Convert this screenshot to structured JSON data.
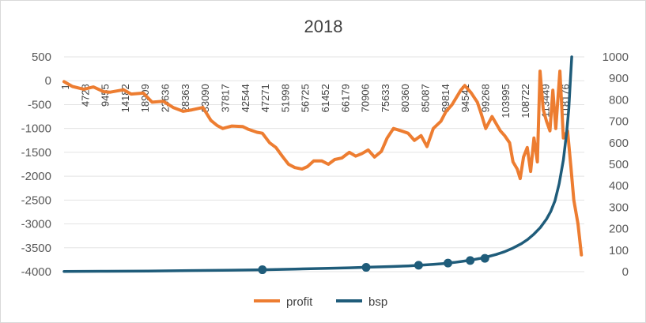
{
  "chart_data": {
    "type": "line",
    "title": "2018",
    "xlabel": "",
    "ylabel": "",
    "y_left": {
      "min": -4000,
      "max": 500,
      "ticks": [
        500,
        0,
        -500,
        -1000,
        -1500,
        -2000,
        -2500,
        -3000,
        -3500,
        -4000
      ]
    },
    "y_right": {
      "min": 0,
      "max": 1000,
      "ticks": [
        1000,
        900,
        800,
        700,
        600,
        500,
        400,
        300,
        200,
        100,
        0
      ]
    },
    "x_range": [
      1,
      124000
    ],
    "categories": [
      "1",
      "4728",
      "9455",
      "14182",
      "18909",
      "23636",
      "28363",
      "33090",
      "37817",
      "42544",
      "47271",
      "51998",
      "56725",
      "61452",
      "66179",
      "70906",
      "75633",
      "80360",
      "85087",
      "89814",
      "94541",
      "99268",
      "103995",
      "108722",
      "113449",
      "118176"
    ],
    "grid": true,
    "legend_position": "bottom",
    "colors": {
      "profit": "#ED7D31",
      "bsp": "#1F5C7A"
    },
    "series": [
      {
        "name": "profit",
        "axis": "left",
        "x": [
          1,
          2000,
          4728,
          7000,
          9455,
          11000,
          14182,
          16000,
          18909,
          21000,
          23636,
          26000,
          28363,
          30500,
          33090,
          35000,
          36500,
          37817,
          40000,
          42544,
          44000,
          46000,
          47271,
          49000,
          50500,
          51998,
          53500,
          55000,
          56725,
          58000,
          59500,
          61452,
          63000,
          64500,
          66179,
          68000,
          69500,
          70906,
          72500,
          74000,
          75633,
          77000,
          78500,
          80360,
          82000,
          83500,
          85087,
          86500,
          88000,
          89814,
          91000,
          92500,
          94541,
          95500,
          97000,
          98500,
          99268,
          100500,
          102000,
          103995,
          105000,
          106200,
          107000,
          108000,
          108722,
          109500,
          110400,
          111200,
          112000,
          112800,
          113449,
          114200,
          115000,
          115800,
          116500,
          117200,
          118176,
          119000,
          120000,
          120800,
          121500,
          122500,
          123300
        ],
        "y": [
          -20,
          -120,
          -180,
          -130,
          -230,
          -240,
          -190,
          -280,
          -260,
          -450,
          -430,
          -560,
          -640,
          -610,
          -560,
          -830,
          -940,
          -1000,
          -950,
          -960,
          -1020,
          -1080,
          -1100,
          -1300,
          -1400,
          -1580,
          -1750,
          -1820,
          -1850,
          -1800,
          -1680,
          -1680,
          -1750,
          -1650,
          -1620,
          -1500,
          -1580,
          -1530,
          -1450,
          -1600,
          -1480,
          -1200,
          -1000,
          -1050,
          -1100,
          -1250,
          -1150,
          -1380,
          -1000,
          -850,
          -650,
          -500,
          -200,
          -100,
          -250,
          -450,
          -650,
          -1000,
          -750,
          -1050,
          -1150,
          -1300,
          -1700,
          -1850,
          -2050,
          -1600,
          -1400,
          -1900,
          -1200,
          -1700,
          200,
          -600,
          -850,
          -1050,
          -200,
          -1000,
          200,
          -1200,
          -1050,
          -1800,
          -2500,
          -3000,
          -3650
        ]
      },
      {
        "name": "bsp",
        "axis": "right",
        "x": [
          1,
          10000,
          20000,
          30000,
          40000,
          47271,
          55000,
          62000,
          68000,
          73000,
          78000,
          82000,
          85087,
          88000,
          90500,
          93000,
          95000,
          97000,
          99000,
          101000,
          103000,
          105000,
          107000,
          109000,
          110500,
          112000,
          113500,
          115000,
          116000,
          117000,
          118000,
          119000,
          119800,
          120300,
          120700,
          121000
        ],
        "y": [
          1,
          2,
          3,
          5,
          7,
          9,
          12,
          15,
          18,
          21,
          24,
          27,
          30,
          34,
          38,
          43,
          48,
          54,
          61,
          70,
          80,
          93,
          110,
          130,
          150,
          175,
          205,
          245,
          280,
          330,
          410,
          520,
          650,
          760,
          900,
          1000
        ]
      }
    ],
    "markers": [
      {
        "series": "bsp",
        "x": 47271,
        "y": 9
      },
      {
        "series": "bsp",
        "x": 72000,
        "y": 20
      },
      {
        "series": "bsp",
        "x": 84500,
        "y": 30
      },
      {
        "series": "bsp",
        "x": 91500,
        "y": 40
      },
      {
        "series": "bsp",
        "x": 96800,
        "y": 52
      },
      {
        "series": "bsp",
        "x": 100300,
        "y": 62
      }
    ]
  }
}
